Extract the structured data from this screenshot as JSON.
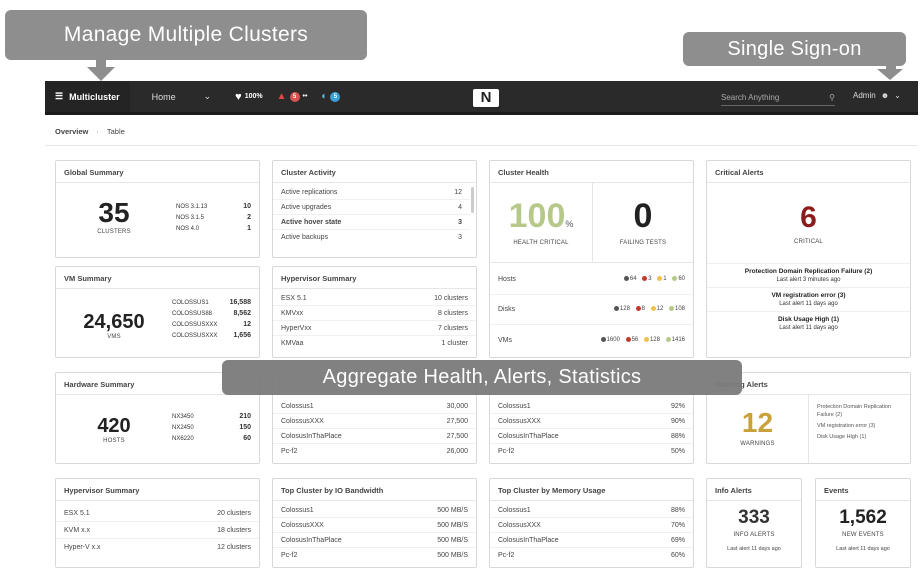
{
  "callouts": {
    "manage": "Manage Multiple Clusters",
    "sso": "Single Sign-on",
    "aggregate": "Aggregate Health, Alerts, Statistics"
  },
  "nav": {
    "brand": "Multicluster",
    "home": "Home",
    "health_pct": "100%",
    "alert_count": "5",
    "task_count": "5",
    "logo": "N",
    "search_placeholder": "Search Anything",
    "admin": "Admin"
  },
  "subnav": {
    "overview": "Overview",
    "sep": "·",
    "table": "Table"
  },
  "global_summary": {
    "title": "Global Summary",
    "value": "35",
    "label": "CLUSTERS",
    "rows": [
      {
        "k": "NOS 3.1.13",
        "v": "10"
      },
      {
        "k": "NOS 3.1.5",
        "v": "2"
      },
      {
        "k": "NOS 4.0",
        "v": "1"
      }
    ]
  },
  "cluster_activity": {
    "title": "Cluster Activity",
    "rows": [
      {
        "k": "Active replications",
        "v": "12"
      },
      {
        "k": "Active upgrades",
        "v": "4"
      },
      {
        "k": "Active hover state",
        "v": "3"
      },
      {
        "k": "Active backups",
        "v": "3"
      }
    ]
  },
  "cluster_health": {
    "title": "Cluster Health",
    "health": "100",
    "health_unit": "%",
    "health_label": "HEALTH CRITICAL",
    "failing": "0",
    "failing_label": "FAILING TESTS",
    "rows": [
      {
        "k": "Hosts",
        "a": "64",
        "b": "3",
        "c": "1",
        "d": "60"
      },
      {
        "k": "Disks",
        "a": "128",
        "b": "8",
        "c": "12",
        "d": "108"
      },
      {
        "k": "VMs",
        "a": "1600",
        "b": "56",
        "c": "128",
        "d": "1416"
      }
    ]
  },
  "critical_alerts": {
    "title": "Critical Alerts",
    "value": "6",
    "label": "CRITICAL",
    "items": [
      {
        "t": "Protection Domain Replication Failure (2)",
        "s": "Last alert 3 minutes ago"
      },
      {
        "t": "VM registration error (3)",
        "s": "Last alert 11 days ago"
      },
      {
        "t": "Disk Usage High (1)",
        "s": "Last alert 11 days ago"
      }
    ]
  },
  "vm_summary": {
    "title": "VM Summary",
    "value": "24,650",
    "label": "VMS",
    "rows": [
      {
        "k": "COLOSSUS1",
        "v": "16,588"
      },
      {
        "k": "COLOSSUS88",
        "v": "8,562"
      },
      {
        "k": "COLOSSUSXXX",
        "v": "12"
      },
      {
        "k": "COLOSSUSXXX",
        "v": "1,656"
      }
    ]
  },
  "hypervisor_summary_top": {
    "title": "Hypervisor Summary",
    "rows": [
      {
        "k": "ESX 5.1",
        "v": "10 clusters"
      },
      {
        "k": "KMVxx",
        "v": "8 clusters"
      },
      {
        "k": "HyperVxx",
        "v": "7 clusters"
      },
      {
        "k": "KMVaa",
        "v": "1 cluster"
      }
    ]
  },
  "hardware_summary": {
    "title": "Hardware Summary",
    "value": "420",
    "label": "HOSTS",
    "rows": [
      {
        "k": "NX3450",
        "v": "210"
      },
      {
        "k": "NX2450",
        "v": "150"
      },
      {
        "k": "NX6220",
        "v": "60"
      }
    ]
  },
  "mid_table_a": {
    "rows": [
      {
        "k": "Colossus1",
        "v": "30,000"
      },
      {
        "k": "ColossusXXX",
        "v": "27,500"
      },
      {
        "k": "ColosusInThaPlace",
        "v": "27,500"
      },
      {
        "k": "Pc-f2",
        "v": "26,000"
      }
    ]
  },
  "mid_table_b": {
    "rows": [
      {
        "k": "Colossus1",
        "v": "92%"
      },
      {
        "k": "ColossusXXX",
        "v": "90%"
      },
      {
        "k": "ColosusInThaPlace",
        "v": "88%"
      },
      {
        "k": "Pc-f2",
        "v": "50%"
      }
    ]
  },
  "warning_alerts": {
    "title": "Warning Alerts",
    "value": "12",
    "label": "WARNINGS",
    "items": [
      "Protection Domain Replication Failure (2)",
      "VM registration error (3)",
      "Disk Usage High (1)"
    ]
  },
  "hypervisor_summary_bottom": {
    "title": "Hypervisor Summary",
    "rows": [
      {
        "k": "ESX 5.1",
        "v": "20 clusters"
      },
      {
        "k": "KVM x.x",
        "v": "18 clusters"
      },
      {
        "k": "Hyper-V x.x",
        "v": "12 clusters"
      }
    ]
  },
  "io_bandwidth": {
    "title": "Top Cluster by IO Bandwidth",
    "rows": [
      {
        "k": "Colossus1",
        "v": "500 MB/S"
      },
      {
        "k": "ColossusXXX",
        "v": "500 MB/S"
      },
      {
        "k": "ColosusInThaPlace",
        "v": "500 MB/S"
      },
      {
        "k": "Pc-f2",
        "v": "500 MB/S"
      }
    ]
  },
  "memory_usage": {
    "title": "Top Cluster by Memory Usage",
    "rows": [
      {
        "k": "Colossus1",
        "v": "88%"
      },
      {
        "k": "ColossusXXX",
        "v": "70%"
      },
      {
        "k": "ColosusInThaPlace",
        "v": "69%"
      },
      {
        "k": "Pc-f2",
        "v": "60%"
      }
    ]
  },
  "info_alerts": {
    "title": "Info Alerts",
    "value": "333",
    "label": "INFO ALERTS",
    "sub": "Last alert 11 days ago"
  },
  "events": {
    "title": "Events",
    "value": "1,562",
    "label": "NEW EVENTS",
    "sub": "Last alert 11 days ago"
  },
  "colors": {
    "health_green": "#b7c98a",
    "critical_red": "#8b1c1c",
    "warning_gold": "#c9a13b",
    "nav_dark": "#2a2a2a",
    "callout_grey": "#8e8e8e"
  }
}
